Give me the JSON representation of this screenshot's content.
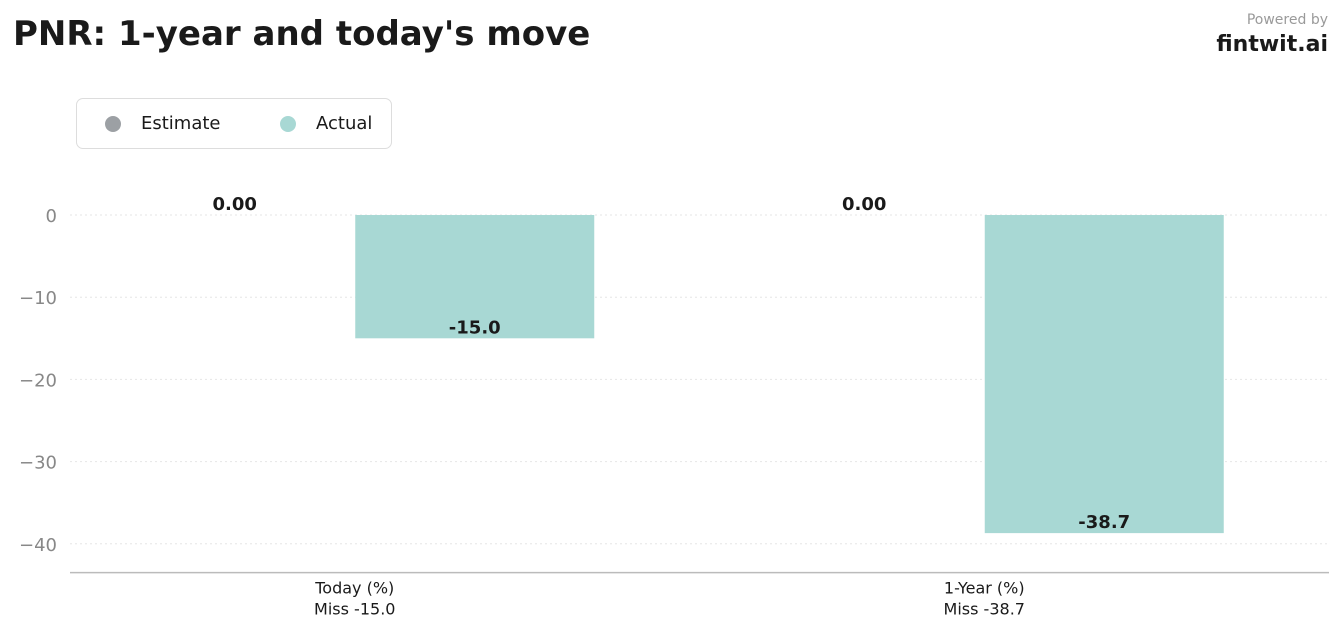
{
  "header": {
    "title": "PNR: 1-year and today's move",
    "powered_by": "Powered by",
    "brand": "fintwit.ai"
  },
  "colors": {
    "estimate": "#9ca0a4",
    "actual": "#a8d8d4",
    "grid": "#e6e6e6",
    "axis": "#bbbbbb",
    "tick_text": "#888888",
    "label_text": "#1a1a1a"
  },
  "chart_data": {
    "type": "bar",
    "title": "PNR: 1-year and today's move",
    "categories": [
      "Today (%)",
      "1-Year (%)"
    ],
    "category_sublabels": [
      "Miss -15.0",
      "Miss -38.7"
    ],
    "series": [
      {
        "name": "Estimate",
        "values": [
          0.0,
          0.0
        ],
        "labels": [
          "0.00",
          "0.00"
        ]
      },
      {
        "name": "Actual",
        "values": [
          -15.0,
          -38.7
        ],
        "labels": [
          "-15.0",
          "-38.7"
        ]
      }
    ],
    "ylim": [
      -43.5,
      0
    ],
    "yticks": [
      0,
      -10,
      -20,
      -30,
      -40
    ],
    "ytick_labels": [
      "0",
      "−10",
      "−20",
      "−30",
      "−40"
    ],
    "grid": true,
    "legend": "top-left"
  }
}
